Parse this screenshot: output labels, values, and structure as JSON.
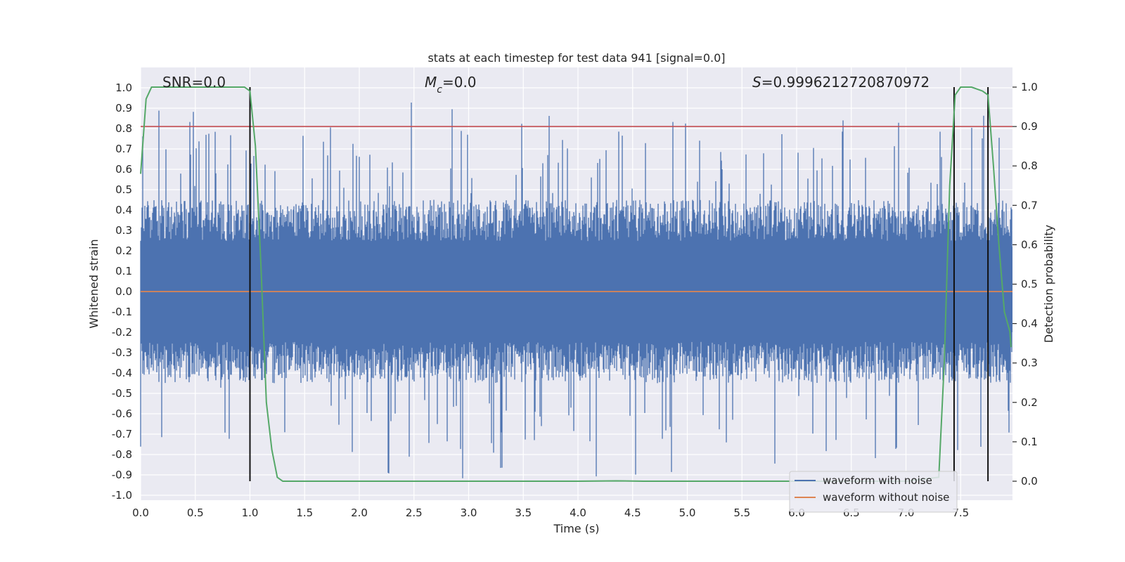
{
  "chart_data": {
    "type": "line",
    "title": "stats at each timestep for test data 941 [signal=0.0]",
    "xlabel": "Time (s)",
    "ylabel": "Whitened strain",
    "y2label": "Detection probability",
    "xlim": [
      0.0,
      8.0
    ],
    "ylim": [
      -1.05,
      1.05
    ],
    "y2lim": [
      -0.05,
      1.05
    ],
    "xticks": [
      "0.0",
      "0.5",
      "1.0",
      "1.5",
      "2.0",
      "2.5",
      "3.0",
      "3.5",
      "4.0",
      "4.5",
      "5.0",
      "5.5",
      "6.0",
      "6.5",
      "7.0",
      "7.5"
    ],
    "yticks": [
      "1.0",
      "0.9",
      "0.8",
      "0.7",
      "0.6",
      "0.5",
      "0.4",
      "0.3",
      "0.2",
      "0.1",
      "0.0",
      "-0.1",
      "-0.2",
      "-0.3",
      "-0.4",
      "-0.5",
      "-0.6",
      "-0.7",
      "-0.8",
      "-0.9",
      "-1.0"
    ],
    "y2ticks": [
      "1.0",
      "0.9",
      "0.8",
      "0.7",
      "0.6",
      "0.5",
      "0.4",
      "0.3",
      "0.2",
      "0.1",
      "0.0"
    ],
    "grid": true,
    "background": "#eaeaf2",
    "annotations": {
      "snr": "SNR=0.0",
      "mc": "=0.0",
      "s": "=0.9996212720870972"
    },
    "threshold": {
      "y2": 0.9,
      "color": "#c44e52"
    },
    "vertical_lines_x": [
      1.0,
      7.44,
      7.75
    ],
    "series": [
      {
        "name": "waveform with noise",
        "color": "#4c72b0",
        "kind": "noise",
        "typical_envelope": [
          -0.45,
          0.45
        ],
        "min": -0.93,
        "max": 1.0
      },
      {
        "name": "waveform without noise",
        "color": "#dd8452",
        "x": [
          0.0,
          8.0
        ],
        "y": [
          0.0,
          0.0
        ]
      },
      {
        "name": "Detection probability",
        "color": "#55a868",
        "axis": "y2",
        "x": [
          0.0,
          0.05,
          0.1,
          0.15,
          0.2,
          0.4,
          0.6,
          0.8,
          0.95,
          1.0,
          1.05,
          1.1,
          1.15,
          1.2,
          1.25,
          1.3,
          1.5,
          2.0,
          3.0,
          4.0,
          4.35,
          4.6,
          5.0,
          6.0,
          7.0,
          7.3,
          7.35,
          7.4,
          7.45,
          7.5,
          7.6,
          7.7,
          7.75,
          7.8,
          7.85,
          7.9,
          7.95,
          8.0
        ],
        "y": [
          0.78,
          0.97,
          1.0,
          1.0,
          1.0,
          1.0,
          1.0,
          1.0,
          1.0,
          0.99,
          0.85,
          0.55,
          0.2,
          0.08,
          0.01,
          0.0,
          0.0,
          0.0,
          0.0,
          0.0,
          0.001,
          0.0,
          0.0,
          0.0,
          0.0,
          0.01,
          0.3,
          0.75,
          0.98,
          1.0,
          1.0,
          0.99,
          0.98,
          0.8,
          0.6,
          0.43,
          0.38,
          0.34
        ]
      }
    ],
    "legend_position": "lower-right"
  }
}
